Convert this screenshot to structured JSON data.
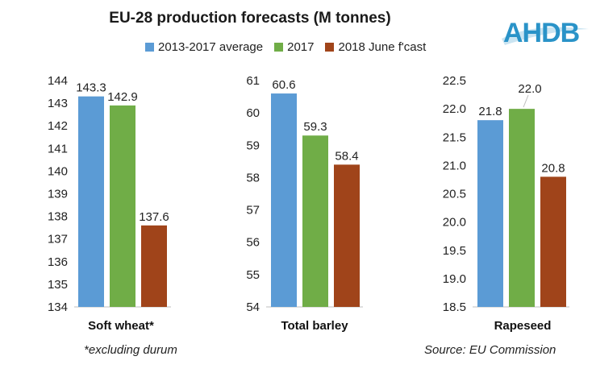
{
  "title": "EU-28 production forecasts (M tonnes)",
  "logo_text": "AHDB",
  "legend": [
    {
      "label": "2013-2017 average",
      "color": "#5b9bd5"
    },
    {
      "label": "2017",
      "color": "#70ad47"
    },
    {
      "label": "2018 June f'cast",
      "color": "#a0441a"
    }
  ],
  "footnote": "*excluding durum",
  "source": "Source: EU Commission",
  "chart_data": [
    {
      "type": "bar",
      "xlabel": "Soft wheat*",
      "ylim": [
        134,
        144
      ],
      "yticks": [
        134,
        135,
        136,
        137,
        138,
        139,
        140,
        141,
        142,
        143,
        144
      ],
      "ytick_labels": [
        "134",
        "135",
        "136",
        "137",
        "138",
        "139",
        "140",
        "141",
        "142",
        "143",
        "144"
      ],
      "series": [
        {
          "name": "2013-2017 average",
          "values": [
            143.3
          ],
          "labels": [
            "143.3"
          ]
        },
        {
          "name": "2017",
          "values": [
            142.9
          ],
          "labels": [
            "142.9"
          ]
        },
        {
          "name": "2018 June f'cast",
          "values": [
            137.6
          ],
          "labels": [
            "137.6"
          ]
        }
      ]
    },
    {
      "type": "bar",
      "xlabel": "Total barley",
      "ylim": [
        54,
        61
      ],
      "yticks": [
        54,
        55,
        56,
        57,
        58,
        59,
        60,
        61
      ],
      "ytick_labels": [
        "54",
        "55",
        "56",
        "57",
        "58",
        "59",
        "60",
        "61"
      ],
      "series": [
        {
          "name": "2013-2017 average",
          "values": [
            60.6
          ],
          "labels": [
            "60.6"
          ]
        },
        {
          "name": "2017",
          "values": [
            59.3
          ],
          "labels": [
            "59.3"
          ]
        },
        {
          "name": "2018 June f'cast",
          "values": [
            58.4
          ],
          "labels": [
            "58.4"
          ]
        }
      ]
    },
    {
      "type": "bar",
      "xlabel": "Rapeseed",
      "ylim": [
        18.5,
        22.5
      ],
      "yticks": [
        18.5,
        19.0,
        19.5,
        20.0,
        20.5,
        21.0,
        21.5,
        22.0,
        22.5
      ],
      "ytick_labels": [
        "18.5",
        "19.0",
        "19.5",
        "20.0",
        "20.5",
        "21.0",
        "21.5",
        "22.0",
        "22.5"
      ],
      "series": [
        {
          "name": "2013-2017 average",
          "values": [
            21.8
          ],
          "labels": [
            "21.8"
          ]
        },
        {
          "name": "2017",
          "values": [
            22.0
          ],
          "labels": [
            "22.0"
          ]
        },
        {
          "name": "2018 June f'cast",
          "values": [
            20.8
          ],
          "labels": [
            "20.8"
          ]
        }
      ]
    }
  ]
}
